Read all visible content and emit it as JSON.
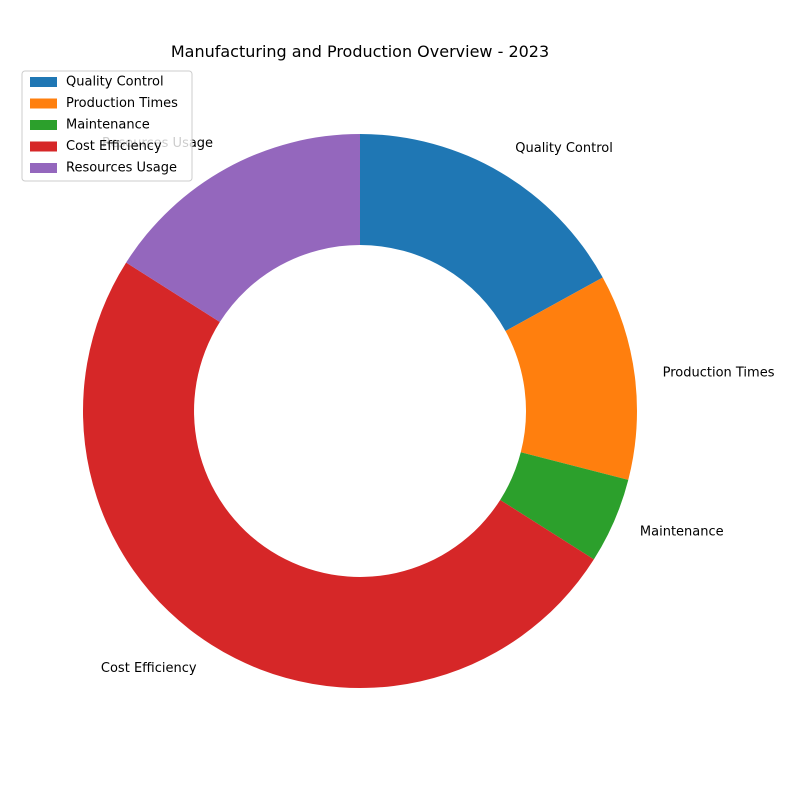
{
  "chart_data": {
    "type": "pie",
    "style": "donut",
    "title": "Manufacturing and Production Overview - 2023",
    "categories": [
      "Quality Control",
      "Production Times",
      "Maintenance",
      "Cost Efficiency",
      "Resources Usage"
    ],
    "values": [
      17,
      12,
      5,
      50,
      16
    ],
    "colors": [
      "#1f77b4",
      "#ff7f0e",
      "#2ca02c",
      "#d62728",
      "#9467bd"
    ],
    "start_angle": "top",
    "direction": "clockwise",
    "legend": {
      "position": "top-left"
    }
  }
}
